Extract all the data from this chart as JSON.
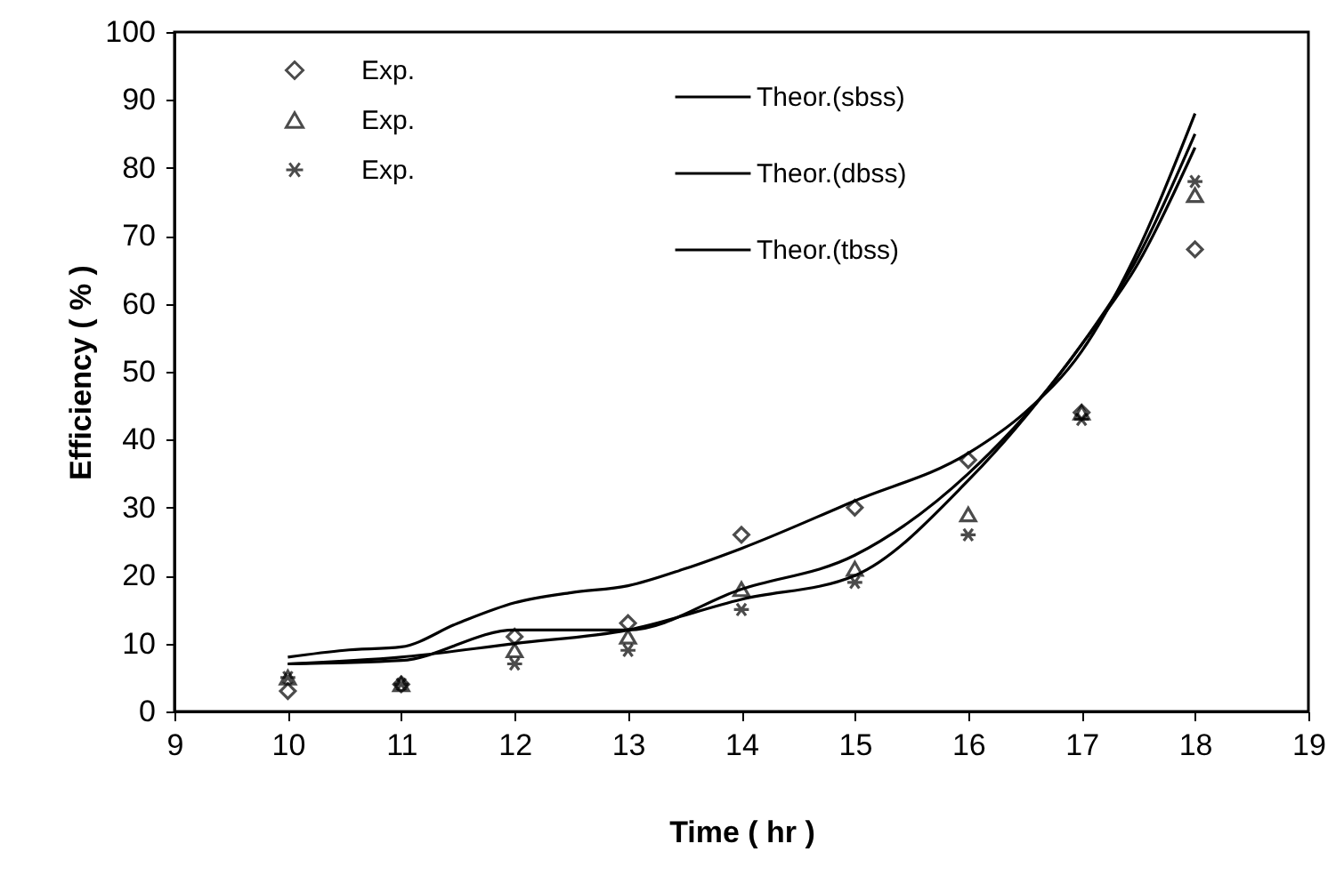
{
  "chart_data": {
    "type": "scatter",
    "xlabel": "Time ( hr )",
    "ylabel": "Efficiency ( % )",
    "xlim": [
      9,
      19
    ],
    "xticks": [
      9,
      10,
      11,
      12,
      13,
      14,
      15,
      16,
      17,
      18,
      19
    ],
    "ylim": [
      0,
      100
    ],
    "yticks": [
      0,
      10,
      20,
      30,
      40,
      50,
      60,
      70,
      80,
      90,
      100
    ],
    "legend": "top left",
    "grid": false,
    "series": [
      {
        "name": "Exp.",
        "type": "scatter",
        "marker": "diamond",
        "color": "#000000",
        "x": [
          10,
          11,
          12,
          13,
          14,
          15,
          16,
          17,
          18
        ],
        "values": [
          3,
          4,
          11,
          13,
          26,
          30,
          37,
          44,
          68
        ]
      },
      {
        "name": "Exp.",
        "type": "scatter",
        "marker": "triangle",
        "color": "#000000",
        "x": [
          10,
          11,
          12,
          13,
          14,
          15,
          16,
          17,
          18
        ],
        "values": [
          5,
          4,
          9,
          11,
          18,
          21,
          29,
          44,
          76
        ]
      },
      {
        "name": "Exp.",
        "type": "scatter",
        "marker": "cross",
        "color": "#000000",
        "x": [
          10,
          11,
          12,
          13,
          14,
          15,
          16,
          17,
          18
        ],
        "values": [
          5,
          4,
          7,
          9,
          15,
          19,
          26,
          43,
          78
        ]
      },
      {
        "name": "Theor.(sbss)",
        "type": "line",
        "line_style": "solid",
        "color": "#000000",
        "x": [
          10,
          10.5,
          11,
          11.5,
          12,
          12.5,
          13,
          13.5,
          14,
          15,
          16,
          16.5,
          17,
          17.5,
          18
        ],
        "values": [
          8,
          9,
          9.5,
          13,
          16,
          17.5,
          18.5,
          21,
          24,
          31,
          38,
          44,
          53,
          68,
          88
        ]
      },
      {
        "name": "Theor.(dbss)",
        "type": "line",
        "line_style": "solid",
        "color": "#000000",
        "x": [
          10,
          11,
          12,
          12.5,
          13,
          14,
          15,
          16,
          17,
          17.5,
          18
        ],
        "values": [
          7,
          7.5,
          12,
          12,
          12,
          18,
          23,
          35,
          54,
          67,
          85
        ]
      },
      {
        "name": "Theor.(tbss)",
        "type": "line",
        "line_style": "solid",
        "color": "#000000",
        "x": [
          10,
          11,
          12,
          13,
          14,
          15,
          16,
          17,
          17.5,
          18
        ],
        "values": [
          7,
          8,
          10,
          12,
          16.5,
          20,
          34,
          54,
          66,
          83
        ]
      }
    ]
  }
}
